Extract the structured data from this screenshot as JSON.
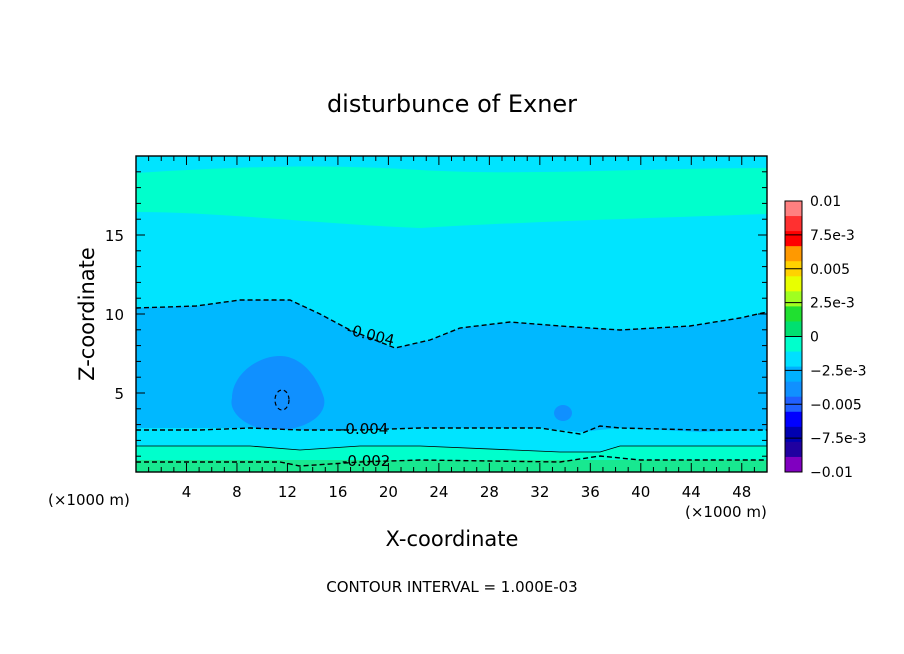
{
  "chart_data": {
    "type": "heatmap",
    "title": "disturbunce of Exner",
    "xlabel": "X-coordinate",
    "ylabel": "Z-coordinate",
    "x_unit": "(×1000 m)",
    "y_unit": "(×1000 m)",
    "xlim": [
      0,
      50
    ],
    "ylim": [
      0,
      20
    ],
    "x_ticks": [
      "4",
      "8",
      "12",
      "16",
      "20",
      "24",
      "28",
      "32",
      "36",
      "40",
      "44",
      "48"
    ],
    "y_ticks": [
      "5",
      "10",
      "15"
    ],
    "footer": "CONTOUR INTERVAL = 1.000E-03",
    "colorbar": {
      "labels": [
        "0.01",
        "7.5e-3",
        "0.005",
        "2.5e-3",
        "0",
        "−2.5e-3",
        "−0.005",
        "−7.5e-3",
        "−0.01"
      ],
      "colors": [
        "#ff8080",
        "#ff3030",
        "#ff0000",
        "#ff9900",
        "#ffd200",
        "#e8ff00",
        "#a0ff20",
        "#20e030",
        "#00e070",
        "#00ffcc",
        "#00e0ff",
        "#00b0ff",
        "#1090ff",
        "#2060ff",
        "#0000ff",
        "#0000b0",
        "#2000a0",
        "#8000c0"
      ]
    },
    "bands": [
      {
        "range": [
          -0.002,
          -0.001
        ],
        "color": "#18e890"
      },
      {
        "range": [
          -0.003,
          -0.002
        ],
        "color": "#00ffcc"
      },
      {
        "range": [
          -0.004,
          -0.003
        ],
        "color": "#00e4ff"
      },
      {
        "range": [
          -0.005,
          -0.004
        ],
        "color": "#00b8ff"
      },
      {
        "range": [
          -0.006,
          -0.005
        ],
        "color": "#1090ff"
      }
    ],
    "contour_labels": [
      {
        "text": "-0.004",
        "x": 19.2,
        "z": 8.6,
        "rotate": 14
      },
      {
        "text": "-0.004",
        "x": 19.0,
        "z": 2.7,
        "rotate": 0
      },
      {
        "text": "-0.002",
        "x": 19.0,
        "z": 0.6,
        "rotate": 0
      }
    ]
  }
}
